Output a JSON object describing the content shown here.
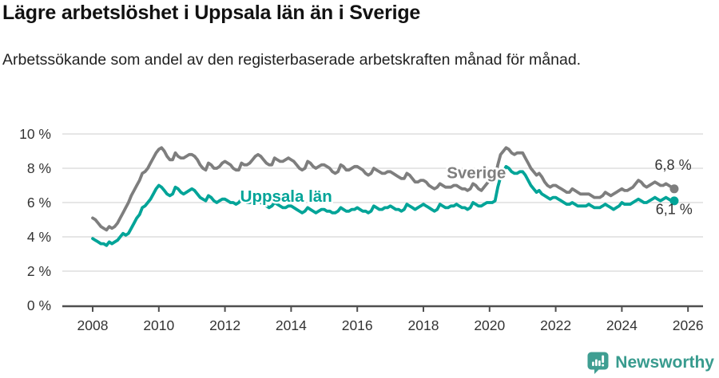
{
  "footer": {
    "brand": "Newsworthy",
    "brand_color": "#389b8e",
    "logo_icon": "speech-bubble-bar-chart-icon"
  },
  "chart_data": {
    "type": "line",
    "title": "Lägre arbetslöshet i Uppsala län än i Sverige",
    "subtitle": "Arbetssökande som andel av den registerbaserade arbetskraften månad för månad.",
    "unit": "%",
    "frequency": "monthly",
    "grid": true,
    "legend_position": "inline-labels",
    "ylim": [
      0,
      10
    ],
    "xlim": [
      2007.9,
      2026.45
    ],
    "x_axis": {
      "start_year": 2008,
      "ticks": [
        {
          "value": 2008,
          "label": "2008"
        },
        {
          "value": 2010,
          "label": "2010"
        },
        {
          "value": 2012,
          "label": "2012"
        },
        {
          "value": 2014,
          "label": "2014"
        },
        {
          "value": 2016,
          "label": "2016"
        },
        {
          "value": 2018,
          "label": "2018"
        },
        {
          "value": 2020,
          "label": "2020"
        },
        {
          "value": 2022,
          "label": "2022"
        },
        {
          "value": 2024,
          "label": "2024"
        },
        {
          "value": 2026,
          "label": "2026"
        }
      ]
    },
    "y_axis": {
      "ticks": [
        {
          "value": 0,
          "label": "0 %"
        },
        {
          "value": 2,
          "label": "2 %"
        },
        {
          "value": 4,
          "label": "4 %"
        },
        {
          "value": 6,
          "label": "6 %"
        },
        {
          "value": 8,
          "label": "8 %"
        },
        {
          "value": 10,
          "label": "10 %"
        }
      ]
    },
    "style": {
      "grid_color": "#d8d8d8",
      "axis_color": "#4f4f4f",
      "axis_text_color": "#333333",
      "end_label_color": "#333333"
    },
    "series": [
      {
        "id": "sverige",
        "name": "Sverige",
        "color": "#7e7e7e",
        "end_value_label": "6,8 %",
        "values": [
          5.1,
          5.0,
          4.8,
          4.6,
          4.5,
          4.4,
          4.6,
          4.5,
          4.6,
          4.8,
          5.1,
          5.4,
          5.7,
          6.0,
          6.4,
          6.7,
          7.0,
          7.3,
          7.7,
          7.8,
          8.0,
          8.3,
          8.6,
          8.9,
          9.1,
          9.2,
          9.0,
          8.7,
          8.5,
          8.5,
          8.9,
          8.7,
          8.6,
          8.6,
          8.7,
          8.8,
          8.8,
          8.7,
          8.5,
          8.2,
          8.0,
          7.9,
          8.3,
          8.2,
          8.0,
          8.0,
          8.1,
          8.3,
          8.4,
          8.3,
          8.2,
          8.0,
          7.9,
          7.9,
          8.3,
          8.2,
          8.2,
          8.3,
          8.5,
          8.7,
          8.8,
          8.7,
          8.5,
          8.3,
          8.2,
          8.2,
          8.6,
          8.5,
          8.4,
          8.4,
          8.5,
          8.6,
          8.5,
          8.4,
          8.2,
          8.0,
          7.9,
          8.0,
          8.4,
          8.3,
          8.1,
          8.0,
          8.1,
          8.2,
          8.2,
          8.1,
          8.0,
          7.8,
          7.7,
          7.8,
          8.2,
          8.1,
          7.9,
          7.9,
          8.0,
          8.1,
          8.1,
          8.0,
          7.9,
          7.7,
          7.6,
          7.7,
          8.0,
          7.9,
          7.8,
          7.7,
          7.7,
          7.8,
          7.8,
          7.7,
          7.6,
          7.5,
          7.4,
          7.4,
          7.7,
          7.6,
          7.4,
          7.2,
          7.2,
          7.3,
          7.3,
          7.2,
          7.0,
          6.9,
          6.8,
          6.9,
          7.1,
          7.0,
          6.9,
          6.9,
          6.9,
          7.0,
          7.0,
          6.9,
          6.8,
          6.8,
          6.7,
          6.8,
          7.1,
          7.0,
          6.8,
          6.7,
          6.9,
          7.1,
          7.3,
          7.2,
          7.4,
          8.2,
          8.8,
          9.0,
          9.2,
          9.1,
          8.9,
          8.8,
          8.9,
          8.9,
          8.9,
          8.6,
          8.3,
          8.0,
          7.8,
          7.6,
          7.7,
          7.5,
          7.2,
          7.0,
          6.9,
          7.0,
          7.0,
          6.9,
          6.8,
          6.7,
          6.6,
          6.6,
          6.8,
          6.7,
          6.6,
          6.5,
          6.5,
          6.5,
          6.5,
          6.4,
          6.3,
          6.3,
          6.3,
          6.4,
          6.6,
          6.5,
          6.4,
          6.5,
          6.6,
          6.7,
          6.8,
          6.7,
          6.7,
          6.8,
          6.9,
          7.1,
          7.3,
          7.2,
          7.0,
          6.9,
          7.0,
          7.1,
          7.2,
          7.1,
          7.0,
          7.0,
          7.1,
          7.0,
          6.9,
          6.8
        ]
      },
      {
        "id": "uppsala-lan",
        "name": "Uppsala län",
        "color": "#00a498",
        "end_value_label": "6,1 %",
        "values": [
          3.9,
          3.8,
          3.7,
          3.6,
          3.6,
          3.5,
          3.7,
          3.6,
          3.7,
          3.8,
          4.0,
          4.2,
          4.1,
          4.2,
          4.5,
          4.8,
          5.1,
          5.3,
          5.7,
          5.8,
          6.0,
          6.2,
          6.5,
          6.8,
          7.0,
          6.9,
          6.7,
          6.5,
          6.4,
          6.5,
          6.9,
          6.8,
          6.6,
          6.5,
          6.6,
          6.7,
          6.8,
          6.7,
          6.5,
          6.3,
          6.2,
          6.1,
          6.4,
          6.3,
          6.1,
          6.0,
          6.1,
          6.2,
          6.2,
          6.1,
          6.0,
          6.0,
          5.9,
          6.0,
          6.2,
          6.1,
          6.0,
          6.0,
          6.1,
          6.1,
          6.1,
          6.0,
          5.9,
          5.8,
          5.7,
          5.8,
          6.0,
          5.9,
          5.8,
          5.7,
          5.7,
          5.8,
          5.8,
          5.7,
          5.6,
          5.5,
          5.4,
          5.5,
          5.7,
          5.6,
          5.5,
          5.4,
          5.5,
          5.6,
          5.6,
          5.5,
          5.5,
          5.4,
          5.4,
          5.5,
          5.7,
          5.6,
          5.5,
          5.5,
          5.6,
          5.6,
          5.7,
          5.6,
          5.5,
          5.5,
          5.4,
          5.5,
          5.8,
          5.7,
          5.6,
          5.6,
          5.7,
          5.7,
          5.8,
          5.7,
          5.6,
          5.6,
          5.5,
          5.6,
          5.9,
          5.8,
          5.7,
          5.6,
          5.7,
          5.8,
          5.9,
          5.8,
          5.7,
          5.6,
          5.5,
          5.6,
          5.9,
          5.8,
          5.7,
          5.7,
          5.8,
          5.8,
          5.9,
          5.8,
          5.7,
          5.7,
          5.6,
          5.7,
          6.0,
          5.9,
          5.8,
          5.8,
          5.9,
          6.0,
          6.0,
          6.0,
          6.1,
          6.9,
          7.5,
          7.8,
          8.1,
          8.0,
          7.8,
          7.7,
          7.7,
          7.8,
          7.8,
          7.6,
          7.3,
          7.0,
          6.8,
          6.6,
          6.7,
          6.5,
          6.4,
          6.3,
          6.2,
          6.3,
          6.3,
          6.2,
          6.1,
          6.0,
          5.9,
          5.9,
          6.0,
          5.9,
          5.8,
          5.8,
          5.8,
          5.8,
          5.9,
          5.8,
          5.7,
          5.7,
          5.7,
          5.8,
          5.9,
          5.8,
          5.7,
          5.6,
          5.7,
          5.8,
          6.0,
          5.9,
          5.9,
          5.9,
          6.0,
          6.1,
          6.2,
          6.1,
          6.0,
          6.0,
          6.1,
          6.2,
          6.3,
          6.2,
          6.1,
          6.2,
          6.3,
          6.2,
          6.1,
          6.1
        ]
      }
    ],
    "series_labels": [
      {
        "text": "Sverige",
        "x": 2019.6,
        "y": 7.42,
        "color": "#7e7e7e"
      },
      {
        "text": "Uppsala län",
        "x": 2013.85,
        "y": 6.05,
        "color": "#00a498"
      }
    ],
    "end_labels": [
      {
        "text": "6,8 %",
        "x": 2025.55,
        "y": 7.9
      },
      {
        "text": "6,1 %",
        "x": 2025.58,
        "y": 5.32
      }
    ]
  }
}
